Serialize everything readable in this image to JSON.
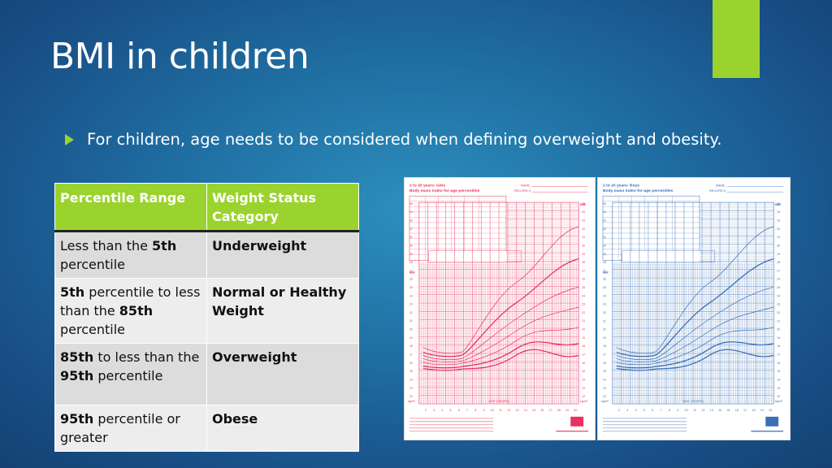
{
  "slide": {
    "title": "BMI in children",
    "bullet": "For children, age needs to be considered when defining overweight and obesity."
  },
  "table": {
    "headers": [
      "Percentile Range",
      "Weight Status Category"
    ],
    "rows": [
      {
        "range_parts": [
          {
            "t": "Less than the ",
            "b": false
          },
          {
            "t": "5th",
            "b": true
          },
          {
            "t": " percentile",
            "b": false
          }
        ],
        "category": "Underweight"
      },
      {
        "range_parts": [
          {
            "t": "5th",
            "b": true
          },
          {
            "t": " percentile to less than the ",
            "b": false
          },
          {
            "t": "85th",
            "b": true
          },
          {
            "t": " percentile",
            "b": false
          }
        ],
        "category": "Normal or Healthy Weight"
      },
      {
        "range_parts": [
          {
            "t": "85th",
            "b": true
          },
          {
            "t": " to less than the ",
            "b": false
          },
          {
            "t": "95th",
            "b": true
          },
          {
            "t": " percentile",
            "b": false
          }
        ],
        "category": "Overweight"
      },
      {
        "range_parts": [
          {
            "t": "95th",
            "b": true
          },
          {
            "t": " percentile or greater",
            "b": false
          }
        ],
        "category": "Obese"
      }
    ]
  },
  "charts": {
    "girls": {
      "title_line1": "2 to 20 years: Girls",
      "title_line2": "Body mass index-for-age percentiles",
      "name_label": "NAME",
      "record_label": "RECORD #",
      "x_label": "AGE (YEARS)",
      "y_unit": "kg/m²",
      "color": "#e8335f",
      "bmi_label": "BMI"
    },
    "boys": {
      "title_line1": "2 to 20 years: Boys",
      "title_line2": "Body mass index-for-age percentiles",
      "name_label": "NAME",
      "record_label": "RECORD #",
      "x_label": "AGE (YEARS)",
      "y_unit": "kg/m²",
      "color": "#3a6fb5",
      "bmi_label": "BMI"
    },
    "ages": [
      "2",
      "3",
      "4",
      "5",
      "6",
      "7",
      "8",
      "9",
      "10",
      "11",
      "12",
      "13",
      "14",
      "15",
      "16",
      "17",
      "18",
      "19",
      "20"
    ],
    "bmi_ticks": [
      "12",
      "13",
      "14",
      "15",
      "16",
      "17",
      "18",
      "19",
      "20",
      "21",
      "22",
      "23",
      "24",
      "25",
      "26",
      "27",
      "28",
      "29",
      "30",
      "31",
      "32",
      "33",
      "34",
      "35"
    ],
    "colors": {
      "accent": "#9bd32e"
    }
  }
}
